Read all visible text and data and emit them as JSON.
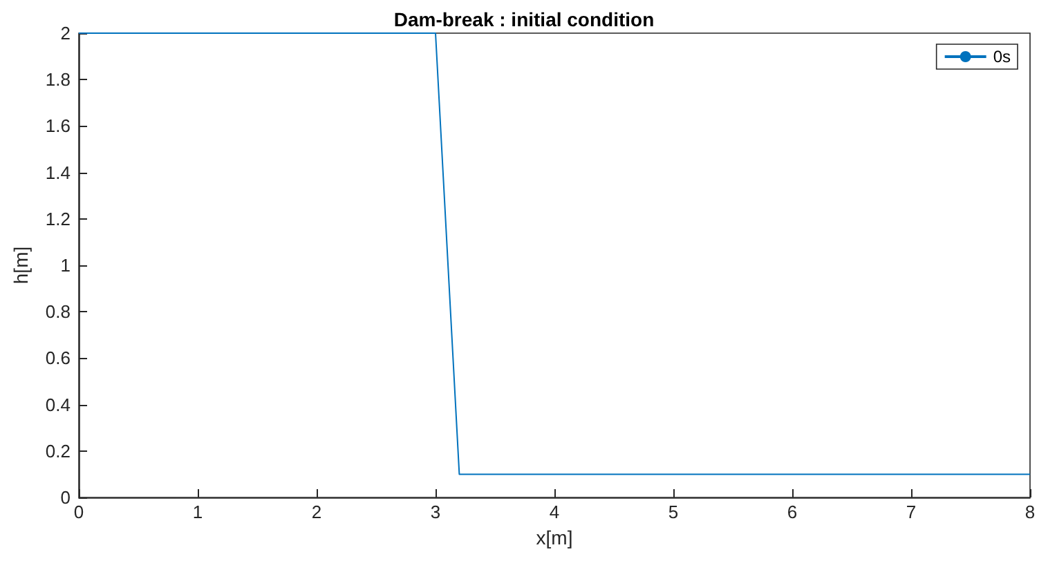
{
  "chart_data": {
    "type": "line",
    "title": "Dam-break : initial condition",
    "xlabel": "x[m]",
    "ylabel": "h[m]",
    "x": [
      0,
      3,
      3.2,
      8
    ],
    "series": [
      {
        "name": "0s",
        "color": "#0072bd",
        "values": [
          2,
          2,
          0.1,
          0.1
        ]
      }
    ],
    "xlim": [
      0,
      8
    ],
    "xticks": [
      0,
      1,
      2,
      3,
      4,
      5,
      6,
      7,
      8
    ],
    "ylim": [
      0,
      2
    ],
    "yticks": [
      0,
      0.2,
      0.4,
      0.6,
      0.8,
      1,
      1.2,
      1.4,
      1.6,
      1.8,
      2
    ],
    "grid": false,
    "legend": "top right",
    "marker": "none",
    "line_style": "solid"
  }
}
